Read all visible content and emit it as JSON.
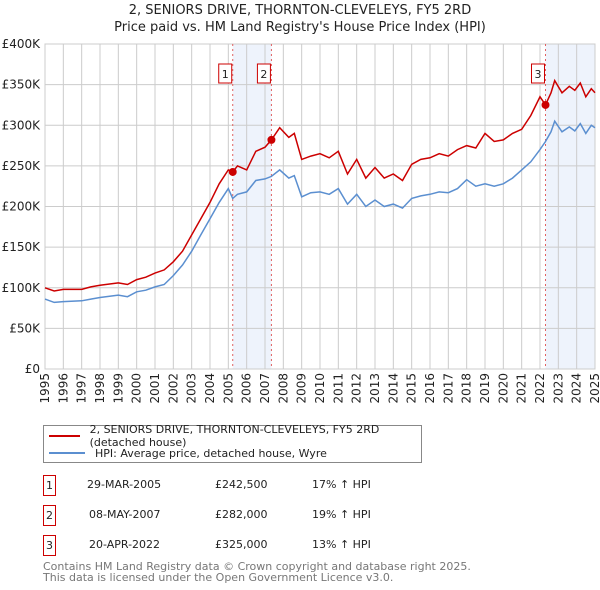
{
  "title": "2, SENIORS DRIVE, THORNTON-CLEVELEYS, FY5 2RD",
  "subtitle": "Price paid vs. HM Land Registry's House Price Index (HPI)",
  "chart_data": {
    "type": "line",
    "xlim": [
      1995,
      2025
    ],
    "ylim": [
      0,
      400000
    ],
    "x_ticks": [
      1995,
      1996,
      1997,
      1998,
      1999,
      2000,
      2001,
      2002,
      2003,
      2004,
      2005,
      2006,
      2007,
      2008,
      2009,
      2010,
      2011,
      2012,
      2013,
      2014,
      2015,
      2016,
      2017,
      2018,
      2019,
      2020,
      2021,
      2022,
      2023,
      2024,
      2025
    ],
    "y_ticks": [
      0,
      50000,
      100000,
      150000,
      200000,
      250000,
      300000,
      350000,
      400000
    ],
    "y_tick_labels": [
      "£0",
      "£50K",
      "£100K",
      "£150K",
      "£200K",
      "£250K",
      "£300K",
      "£350K",
      "£400K"
    ],
    "grid": true,
    "colors": {
      "property": "#cc0000",
      "hpi": "#5b8fd0",
      "shade": "#eef3fc"
    },
    "series": [
      {
        "name": "2, SENIORS DRIVE, THORNTON-CLEVELEYS, FY5 2RD (detached house)",
        "points": [
          [
            1995,
            100000
          ],
          [
            1995.5,
            96000
          ],
          [
            1996,
            98000
          ],
          [
            1997,
            98000
          ],
          [
            1997.5,
            101000
          ],
          [
            1998,
            103000
          ],
          [
            1999,
            106000
          ],
          [
            1999.5,
            104000
          ],
          [
            2000,
            110000
          ],
          [
            2000.5,
            113000
          ],
          [
            2001,
            118000
          ],
          [
            2001.5,
            122000
          ],
          [
            2002,
            132000
          ],
          [
            2002.5,
            145000
          ],
          [
            2003,
            165000
          ],
          [
            2003.5,
            185000
          ],
          [
            2004,
            205000
          ],
          [
            2004.5,
            228000
          ],
          [
            2005,
            245000
          ],
          [
            2005.24,
            242500
          ],
          [
            2005.5,
            250000
          ],
          [
            2006,
            245000
          ],
          [
            2006.5,
            268000
          ],
          [
            2007,
            273000
          ],
          [
            2007.35,
            282000
          ],
          [
            2007.8,
            297000
          ],
          [
            2008.3,
            285000
          ],
          [
            2008.6,
            290000
          ],
          [
            2009,
            258000
          ],
          [
            2009.5,
            262000
          ],
          [
            2010,
            265000
          ],
          [
            2010.5,
            260000
          ],
          [
            2011,
            268000
          ],
          [
            2011.5,
            240000
          ],
          [
            2012,
            258000
          ],
          [
            2012.5,
            235000
          ],
          [
            2013,
            248000
          ],
          [
            2013.5,
            235000
          ],
          [
            2014,
            240000
          ],
          [
            2014.5,
            232000
          ],
          [
            2015,
            252000
          ],
          [
            2015.5,
            258000
          ],
          [
            2016,
            260000
          ],
          [
            2016.5,
            265000
          ],
          [
            2017,
            262000
          ],
          [
            2017.5,
            270000
          ],
          [
            2018,
            275000
          ],
          [
            2018.5,
            272000
          ],
          [
            2019,
            290000
          ],
          [
            2019.5,
            280000
          ],
          [
            2020,
            282000
          ],
          [
            2020.5,
            290000
          ],
          [
            2021,
            295000
          ],
          [
            2021.5,
            312000
          ],
          [
            2022,
            335000
          ],
          [
            2022.3,
            325000
          ],
          [
            2022.6,
            340000
          ],
          [
            2022.8,
            355000
          ],
          [
            2023.2,
            340000
          ],
          [
            2023.6,
            348000
          ],
          [
            2023.9,
            343000
          ],
          [
            2024.2,
            352000
          ],
          [
            2024.5,
            335000
          ],
          [
            2024.8,
            345000
          ],
          [
            2025,
            340000
          ]
        ]
      },
      {
        "name": "HPI: Average price, detached house, Wyre",
        "points": [
          [
            1995,
            86000
          ],
          [
            1995.5,
            82000
          ],
          [
            1996,
            83000
          ],
          [
            1997,
            84000
          ],
          [
            1997.5,
            86000
          ],
          [
            1998,
            88000
          ],
          [
            1999,
            91000
          ],
          [
            1999.5,
            89000
          ],
          [
            2000,
            95000
          ],
          [
            2000.5,
            97000
          ],
          [
            2001,
            101000
          ],
          [
            2001.5,
            104000
          ],
          [
            2002,
            115000
          ],
          [
            2002.5,
            128000
          ],
          [
            2003,
            145000
          ],
          [
            2003.5,
            165000
          ],
          [
            2004,
            185000
          ],
          [
            2004.5,
            205000
          ],
          [
            2005,
            222000
          ],
          [
            2005.24,
            210000
          ],
          [
            2005.5,
            215000
          ],
          [
            2006,
            218000
          ],
          [
            2006.5,
            232000
          ],
          [
            2007,
            234000
          ],
          [
            2007.35,
            237000
          ],
          [
            2007.8,
            245000
          ],
          [
            2008.3,
            235000
          ],
          [
            2008.6,
            238000
          ],
          [
            2009,
            212000
          ],
          [
            2009.5,
            217000
          ],
          [
            2010,
            218000
          ],
          [
            2010.5,
            215000
          ],
          [
            2011,
            222000
          ],
          [
            2011.5,
            203000
          ],
          [
            2012,
            215000
          ],
          [
            2012.5,
            200000
          ],
          [
            2013,
            208000
          ],
          [
            2013.5,
            200000
          ],
          [
            2014,
            203000
          ],
          [
            2014.5,
            198000
          ],
          [
            2015,
            210000
          ],
          [
            2015.5,
            213000
          ],
          [
            2016,
            215000
          ],
          [
            2016.5,
            218000
          ],
          [
            2017,
            217000
          ],
          [
            2017.5,
            222000
          ],
          [
            2018,
            233000
          ],
          [
            2018.5,
            225000
          ],
          [
            2019,
            228000
          ],
          [
            2019.5,
            225000
          ],
          [
            2020,
            228000
          ],
          [
            2020.5,
            235000
          ],
          [
            2021,
            245000
          ],
          [
            2021.5,
            255000
          ],
          [
            2022,
            270000
          ],
          [
            2022.3,
            280000
          ],
          [
            2022.6,
            292000
          ],
          [
            2022.8,
            305000
          ],
          [
            2023.2,
            292000
          ],
          [
            2023.6,
            298000
          ],
          [
            2023.9,
            293000
          ],
          [
            2024.2,
            302000
          ],
          [
            2024.5,
            290000
          ],
          [
            2024.8,
            300000
          ],
          [
            2025,
            297000
          ]
        ]
      }
    ],
    "sales": [
      {
        "label": "1",
        "x": 2005.24,
        "y": 242500
      },
      {
        "label": "2",
        "x": 2007.35,
        "y": 282000
      },
      {
        "label": "3",
        "x": 2022.3,
        "y": 325000
      }
    ],
    "shaded_ranges": [
      [
        2005.24,
        2007.35
      ],
      [
        2022.3,
        2025
      ]
    ]
  },
  "legend": {
    "property": "2, SENIORS DRIVE, THORNTON-CLEVELEYS, FY5 2RD (detached house)",
    "hpi": "HPI: Average price, detached house, Wyre"
  },
  "transactions": [
    {
      "num": "1",
      "date": "29-MAR-2005",
      "price": "£242,500",
      "hpi": "17% ↑ HPI"
    },
    {
      "num": "2",
      "date": "08-MAY-2007",
      "price": "£282,000",
      "hpi": "19% ↑ HPI"
    },
    {
      "num": "3",
      "date": "20-APR-2022",
      "price": "£325,000",
      "hpi": "13% ↑ HPI"
    }
  ],
  "footer": {
    "line1": "Contains HM Land Registry data © Crown copyright and database right 2025.",
    "line2": "This data is licensed under the Open Government Licence v3.0."
  }
}
